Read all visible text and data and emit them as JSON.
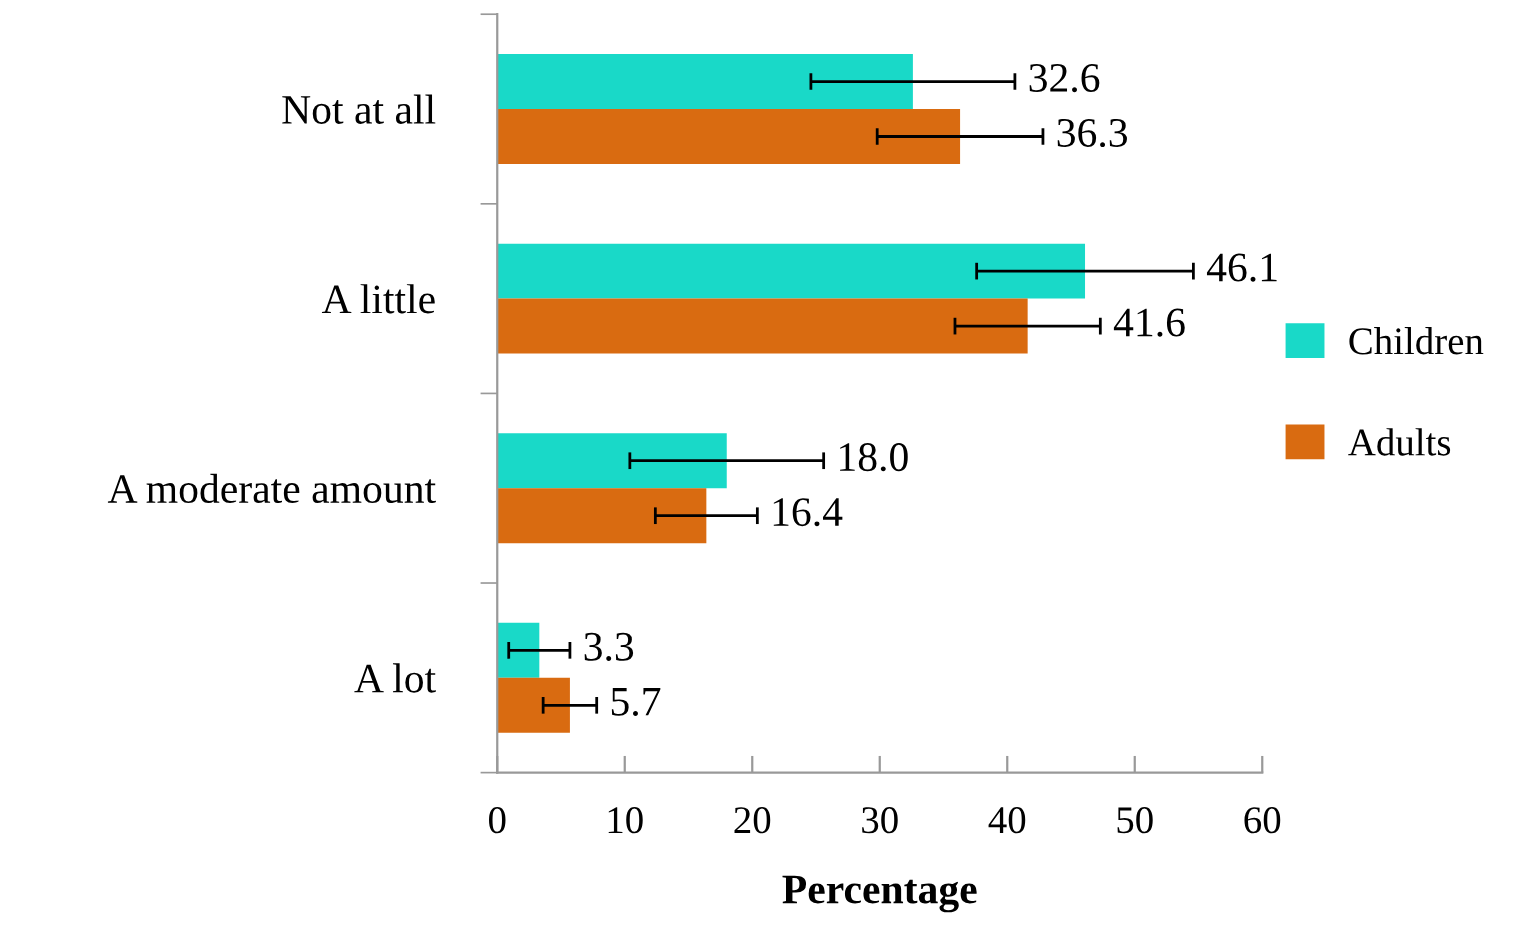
{
  "chart_data": {
    "type": "bar",
    "orientation": "horizontal",
    "xlabel": "Percentage",
    "categories": [
      "Not at all",
      "A little",
      "A moderate amount",
      "A lot"
    ],
    "series": [
      {
        "name": "Children",
        "color": "#19d9c8",
        "values": [
          32.6,
          46.1,
          18.0,
          3.3
        ],
        "errors": [
          8.0,
          8.5,
          7.6,
          2.4
        ],
        "value_labels": [
          "32.6",
          "46.1",
          "18.0",
          "3.3"
        ]
      },
      {
        "name": "Adults",
        "color": "#d96b11",
        "values": [
          36.3,
          41.6,
          16.4,
          5.7
        ],
        "errors": [
          6.5,
          5.7,
          4.0,
          2.1
        ],
        "value_labels": [
          "36.3",
          "41.6",
          "16.4",
          "5.7"
        ]
      }
    ],
    "xlim": [
      0,
      60
    ],
    "xticks": [
      0,
      10,
      20,
      30,
      40,
      50,
      60
    ],
    "grid": false,
    "legend": "right"
  }
}
